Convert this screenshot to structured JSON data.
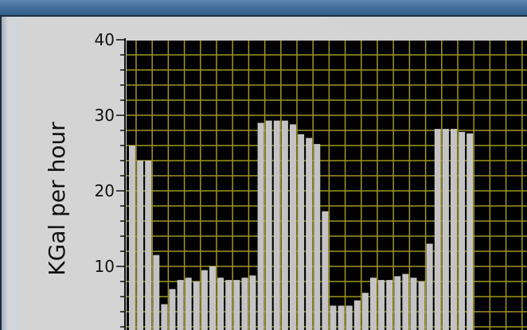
{
  "chart_data": {
    "type": "bar",
    "title": "",
    "xlabel": "",
    "ylabel": "KGal per hour",
    "ylim": [
      0,
      40
    ],
    "yticks": [
      "10",
      "20",
      "30",
      "40"
    ],
    "grid": true,
    "values": [
      26,
      24,
      24,
      11.5,
      5,
      7,
      8.2,
      8.5,
      8,
      9.5,
      10,
      8.5,
      8.2,
      8.2,
      8.5,
      8.8,
      29,
      29.3,
      29.3,
      29.3,
      28.8,
      27.5,
      27,
      26.2,
      17.3,
      4.8,
      4.8,
      4.8,
      5.5,
      6.5,
      8.5,
      8.2,
      8.2,
      8.7,
      9,
      8.5,
      8,
      13,
      28.2,
      28.2,
      28.2,
      27.8,
      27.6
    ],
    "colors": {
      "plot_bg": "#000000",
      "grid": "#a19520",
      "bar": "#c4c4c4"
    }
  }
}
